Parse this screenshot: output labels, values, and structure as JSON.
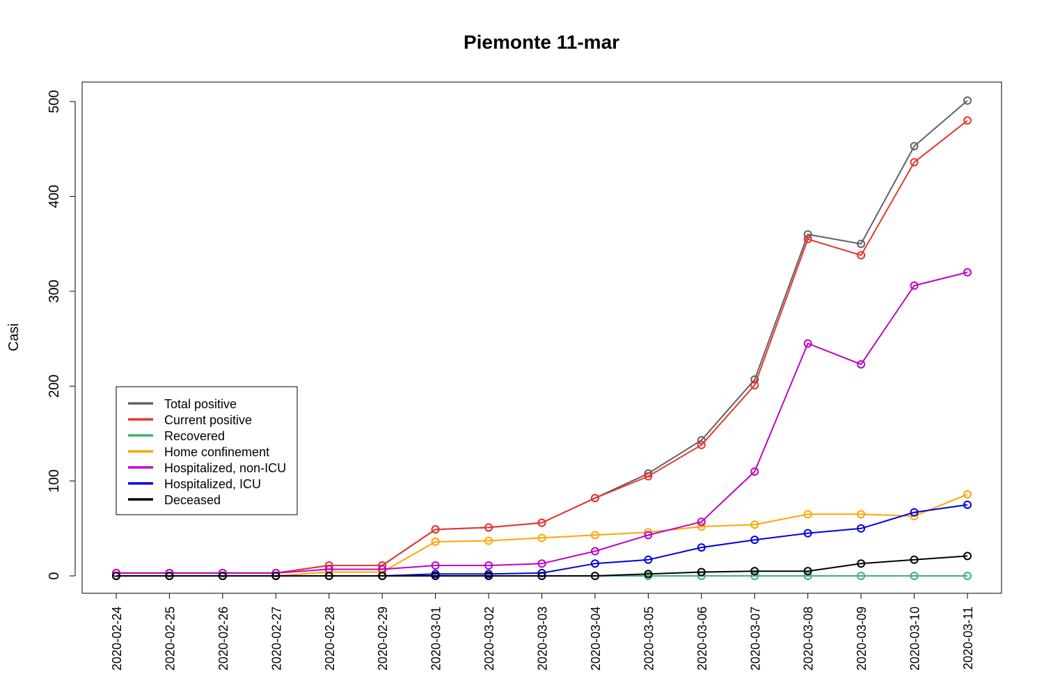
{
  "chart_data": {
    "type": "line",
    "title": "Piemonte 11-mar",
    "xlabel": "",
    "ylabel": "Casi",
    "ylim": [
      0,
      500
    ],
    "yticks": [
      0,
      100,
      200,
      300,
      400,
      500
    ],
    "grid": false,
    "legend_position": "left",
    "categories": [
      "2020-02-24",
      "2020-02-25",
      "2020-02-26",
      "2020-02-27",
      "2020-02-28",
      "2020-02-29",
      "2020-03-01",
      "2020-03-02",
      "2020-03-03",
      "2020-03-04",
      "2020-03-05",
      "2020-03-06",
      "2020-03-07",
      "2020-03-08",
      "2020-03-09",
      "2020-03-10",
      "2020-03-11"
    ],
    "series": [
      {
        "name": "Total positive",
        "color": "#616161",
        "values": [
          3,
          3,
          3,
          3,
          11,
          11,
          49,
          51,
          56,
          82,
          108,
          143,
          207,
          360,
          350,
          453,
          501
        ]
      },
      {
        "name": "Current positive",
        "color": "#e8352e",
        "values": [
          3,
          3,
          3,
          3,
          11,
          11,
          49,
          51,
          56,
          82,
          105,
          138,
          201,
          355,
          338,
          436,
          480
        ]
      },
      {
        "name": "Recovered",
        "color": "#3cb371",
        "values": [
          0,
          0,
          0,
          0,
          0,
          0,
          0,
          0,
          0,
          0,
          0,
          0,
          0,
          0,
          0,
          0,
          0
        ]
      },
      {
        "name": "Home confinement",
        "color": "#ffa500",
        "values": [
          0,
          0,
          0,
          0,
          4,
          4,
          36,
          37,
          40,
          43,
          46,
          52,
          54,
          65,
          65,
          63,
          86
        ]
      },
      {
        "name": "Hospitalized, non-ICU",
        "color": "#c000c8",
        "values": [
          3,
          3,
          3,
          3,
          7,
          7,
          11,
          11,
          13,
          26,
          43,
          57,
          110,
          245,
          223,
          306,
          320
        ]
      },
      {
        "name": "Hospitalized, ICU",
        "color": "#0000e0",
        "values": [
          0,
          0,
          0,
          0,
          0,
          0,
          2,
          2,
          3,
          13,
          17,
          30,
          38,
          45,
          50,
          67,
          75
        ]
      },
      {
        "name": "Deceased",
        "color": "#000000",
        "values": [
          0,
          0,
          0,
          0,
          0,
          0,
          0,
          0,
          0,
          0,
          2,
          4,
          5,
          5,
          13,
          17,
          21
        ]
      }
    ]
  }
}
